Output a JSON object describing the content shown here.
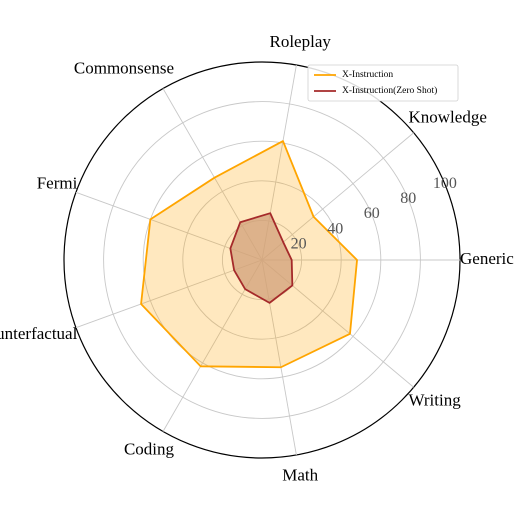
{
  "chart_data": {
    "type": "radar",
    "categories": [
      "Generic",
      "Knowledge",
      "Roleplay",
      "Commonsense",
      "Fermi",
      "Counterfactual",
      "Coding",
      "Math",
      "Writing"
    ],
    "rlim": [
      0,
      100
    ],
    "rticks": [
      20,
      40,
      60,
      80,
      100
    ],
    "rtick_labels": [
      "20",
      "40",
      "60",
      "80",
      "100"
    ],
    "grid": true,
    "legend": "top-right",
    "series": [
      {
        "name": "X-Instruction",
        "color": "#FFA500",
        "fill": "#FFA500",
        "values": [
          48,
          34,
          61,
          48,
          60,
          65,
          62,
          55,
          58
        ]
      },
      {
        "name": "X-Instruction(Zero Shot)",
        "color": "#A52A2A",
        "fill": "#D2A07A",
        "values": [
          15,
          14,
          24,
          22,
          17,
          15,
          17,
          22,
          20
        ]
      }
    ]
  }
}
